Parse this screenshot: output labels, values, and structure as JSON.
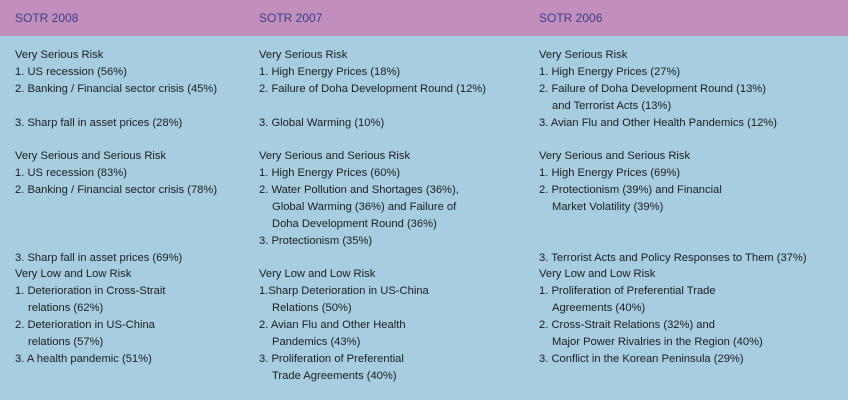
{
  "columns": [
    "SOTR 2008",
    "SOTR 2007",
    "SOTR 2006"
  ],
  "sections": [
    {
      "cells": [
        [
          "Very Serious Risk",
          "1. US recession (56%)",
          "2. Banking / Financial sector crisis (45%)",
          "",
          "3. Sharp fall in asset prices (28%)"
        ],
        [
          "Very Serious Risk",
          "1. High Energy Prices (18%)",
          "2. Failure of Doha Development Round (12%)",
          "",
          "3. Global Warming (10%)"
        ],
        [
          "Very Serious Risk",
          "1. High Energy Prices (27%)",
          "2. Failure of Doha Development Round (13%)",
          "and Terrorist Acts (13%)",
          "3. Avian Flu and Other Health Pandemics (12%)"
        ]
      ]
    },
    {
      "cells": [
        [
          "Very Serious and Serious Risk",
          "1. US recession (83%)",
          "2. Banking / Financial sector crisis (78%)",
          "",
          "",
          "",
          "3. Sharp fall in asset prices (69%)"
        ],
        [
          "Very Serious and Serious Risk",
          "1. High Energy Prices (60%)",
          "2. Water Pollution and Shortages (36%),",
          "Global Warming (36%) and Failure of",
          "Doha Development Round (36%)",
          "3. Protectionism (35%)",
          ""
        ],
        [
          "Very Serious and Serious Risk",
          "1. High Energy Prices (69%)",
          "2. Protectionism (39%) and Financial",
          "Market Volatility (39%)",
          "",
          "",
          "3. Terrorist Acts and Policy Responses to Them (37%)"
        ]
      ]
    },
    {
      "cells": [
        [
          "Very Low and Low Risk",
          "1. Deterioration in Cross-Strait",
          "relations (62%)",
          "2. Deterioration in US-China",
          "relations (57%)",
          "3. A health pandemic (51%)",
          ""
        ],
        [
          "Very Low and Low Risk",
          "1.Sharp Deterioration in US-China",
          "Relations (50%)",
          "2. Avian Flu and Other Health",
          "Pandemics (43%)",
          "3. Proliferation of Preferential",
          "Trade Agreements (40%)"
        ],
        [
          "Very Low and Low Risk",
          "1. Proliferation of Preferential Trade",
          "Agreements (40%)",
          "2. Cross-Strait Relations (32%) and",
          "Major Power Rivalries in the Region (40%)",
          "3. Conflict in the Korean Peninsula (29%)",
          ""
        ]
      ]
    }
  ]
}
